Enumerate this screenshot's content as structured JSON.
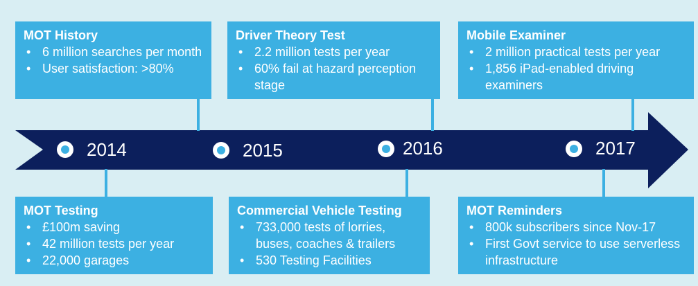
{
  "timeline": {
    "years": [
      "2014",
      "2015",
      "2016",
      "2017"
    ]
  },
  "cards": {
    "mot_history": {
      "title": "MOT History",
      "bullets": [
        "6 million searches per month",
        "User satisfaction: >80%"
      ]
    },
    "driver_theory_test": {
      "title": "Driver Theory Test",
      "bullets": [
        "2.2 million tests per year",
        "60% fail at hazard perception stage"
      ]
    },
    "mobile_examiner": {
      "title": "Mobile Examiner",
      "bullets": [
        "2 million practical tests per year",
        "1,856 iPad-enabled driving examiners"
      ]
    },
    "mot_testing": {
      "title": "MOT Testing",
      "bullets": [
        "£100m saving",
        "42 million tests per year",
        "22,000 garages"
      ]
    },
    "commercial_vehicle_testing": {
      "title": "Commercial Vehicle Testing",
      "bullets": [
        "733,000 tests of lorries, buses, coaches & trailers",
        "530 Testing Facilities"
      ]
    },
    "mot_reminders": {
      "title": "MOT Reminders",
      "bullets": [
        "800k subscribers since Nov-17",
        "First Govt service to use serverless infrastructure"
      ]
    }
  },
  "colors": {
    "background": "#d9eef3",
    "card": "#3cb0e2",
    "arrow": "#0c1f5c",
    "text": "#ffffff"
  }
}
